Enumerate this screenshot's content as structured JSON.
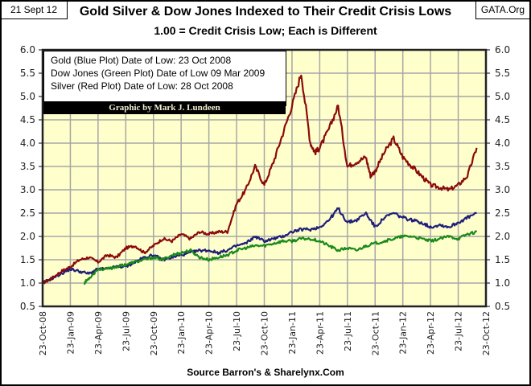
{
  "header": {
    "date_label": "21 Sept 12",
    "org_label": "GATA.Org",
    "title": "Gold Silver & Dow Jones Indexed to Their Credit Crisis Lows",
    "subtitle": "1.00 = Credit Crisis Low; Each is Different"
  },
  "legend": {
    "lines": [
      "Gold (Blue Plot) Date of Low: 23 Oct 2008",
      "Dow Jones (Green Plot) Date of Low 09 Mar 2009",
      "Silver (Red Plot) Date of Low: 28 Oct 2008"
    ],
    "credit": "Graphic by Mark J. Lundeen"
  },
  "footer": {
    "source": "Source Barron's & Sharelynx.Com"
  },
  "colors": {
    "plot_bg": "#ffffcc",
    "grid": "#a6a6a6",
    "gold": "#1f1f7a",
    "dow": "#1a8a1a",
    "silver": "#8b0a0a"
  },
  "chart_data": {
    "type": "line",
    "title": "Gold Silver & Dow Jones Indexed to Their Credit Crisis Lows",
    "subtitle": "1.00 = Credit Crisis Low; Each is Different",
    "xlabel": "",
    "ylabel": "",
    "ylim": [
      0.5,
      6.0
    ],
    "yticks": [
      "0.5",
      "1.0",
      "1.5",
      "2.0",
      "2.5",
      "3.0",
      "3.5",
      "4.0",
      "4.5",
      "5.0",
      "5.5",
      "6.0"
    ],
    "y_axes": "left-and-right",
    "xticks": [
      "23-Oct-08",
      "23-Jan-09",
      "23-Apr-09",
      "23-Jul-09",
      "23-Oct-09",
      "23-Jan-10",
      "23-Apr-10",
      "23-Jul-10",
      "23-Oct-10",
      "23-Jan-11",
      "23-Apr-11",
      "23-Jul-11",
      "23-Oct-11",
      "23-Jan-12",
      "23-Apr-12",
      "23-Jul-12",
      "23-Oct-12"
    ],
    "x_unit": "months since 23-Oct-08",
    "xlim": [
      0,
      48
    ],
    "grid": true,
    "legend_position": "top-left",
    "series": [
      {
        "name": "Silver (Red Plot)",
        "color_key": "silver",
        "x": [
          0,
          1,
          2,
          3,
          4,
          5,
          6,
          7,
          8,
          9,
          10,
          11,
          12,
          13,
          14,
          15,
          16,
          17,
          18,
          19,
          20,
          21,
          22,
          23,
          24,
          25,
          26,
          27,
          28,
          29,
          29.5,
          30,
          31,
          32,
          33,
          34,
          35,
          35.5,
          36,
          37,
          38,
          39,
          40,
          41,
          42,
          43,
          44,
          45,
          46,
          47
        ],
        "values": [
          1.0,
          1.1,
          1.25,
          1.35,
          1.5,
          1.55,
          1.45,
          1.6,
          1.55,
          1.75,
          1.8,
          1.65,
          1.8,
          1.95,
          1.9,
          2.05,
          1.95,
          2.1,
          2.05,
          2.1,
          2.1,
          2.7,
          3.0,
          3.5,
          3.1,
          3.6,
          4.2,
          4.8,
          5.5,
          4.0,
          3.8,
          3.9,
          4.3,
          4.8,
          3.5,
          3.6,
          3.7,
          3.3,
          3.4,
          3.8,
          4.1,
          3.7,
          3.5,
          3.3,
          3.1,
          3.05,
          3.0,
          3.1,
          3.3,
          3.9
        ]
      },
      {
        "name": "Gold (Blue Plot)",
        "color_key": "gold",
        "x": [
          0,
          1,
          2,
          3,
          4,
          5,
          6,
          7,
          8,
          9,
          10,
          11,
          12,
          13,
          14,
          15,
          16,
          17,
          18,
          19,
          20,
          21,
          22,
          23,
          24,
          25,
          26,
          27,
          28,
          29,
          30,
          31,
          32,
          33,
          34,
          35,
          36,
          37,
          38,
          39,
          40,
          41,
          42,
          43,
          44,
          45,
          46,
          47
        ],
        "values": [
          1.0,
          1.1,
          1.2,
          1.3,
          1.25,
          1.2,
          1.3,
          1.3,
          1.35,
          1.35,
          1.45,
          1.55,
          1.6,
          1.5,
          1.55,
          1.6,
          1.65,
          1.7,
          1.7,
          1.65,
          1.7,
          1.8,
          1.85,
          2.0,
          1.9,
          1.95,
          2.0,
          2.1,
          2.15,
          2.15,
          2.2,
          2.35,
          2.6,
          2.3,
          2.35,
          2.5,
          2.2,
          2.4,
          2.5,
          2.4,
          2.35,
          2.3,
          2.2,
          2.25,
          2.2,
          2.3,
          2.4,
          2.5
        ]
      },
      {
        "name": "Dow Jones (Green Plot)",
        "color_key": "dow",
        "x": [
          4.5,
          5,
          6,
          7,
          8,
          9,
          10,
          11,
          12,
          13,
          14,
          15,
          16,
          17,
          18,
          19,
          20,
          21,
          22,
          23,
          24,
          25,
          26,
          27,
          28,
          29,
          30,
          31,
          32,
          33,
          34,
          35,
          36,
          37,
          38,
          39,
          40,
          41,
          42,
          43,
          44,
          45,
          46,
          47
        ],
        "values": [
          1.0,
          1.1,
          1.3,
          1.3,
          1.35,
          1.4,
          1.45,
          1.5,
          1.55,
          1.5,
          1.6,
          1.65,
          1.7,
          1.55,
          1.5,
          1.55,
          1.6,
          1.7,
          1.75,
          1.8,
          1.8,
          1.85,
          1.9,
          1.9,
          1.95,
          1.95,
          1.9,
          1.8,
          1.7,
          1.75,
          1.7,
          1.8,
          1.85,
          1.9,
          1.95,
          2.0,
          2.0,
          1.95,
          1.9,
          1.95,
          2.0,
          1.95,
          2.05,
          2.1
        ]
      }
    ]
  }
}
